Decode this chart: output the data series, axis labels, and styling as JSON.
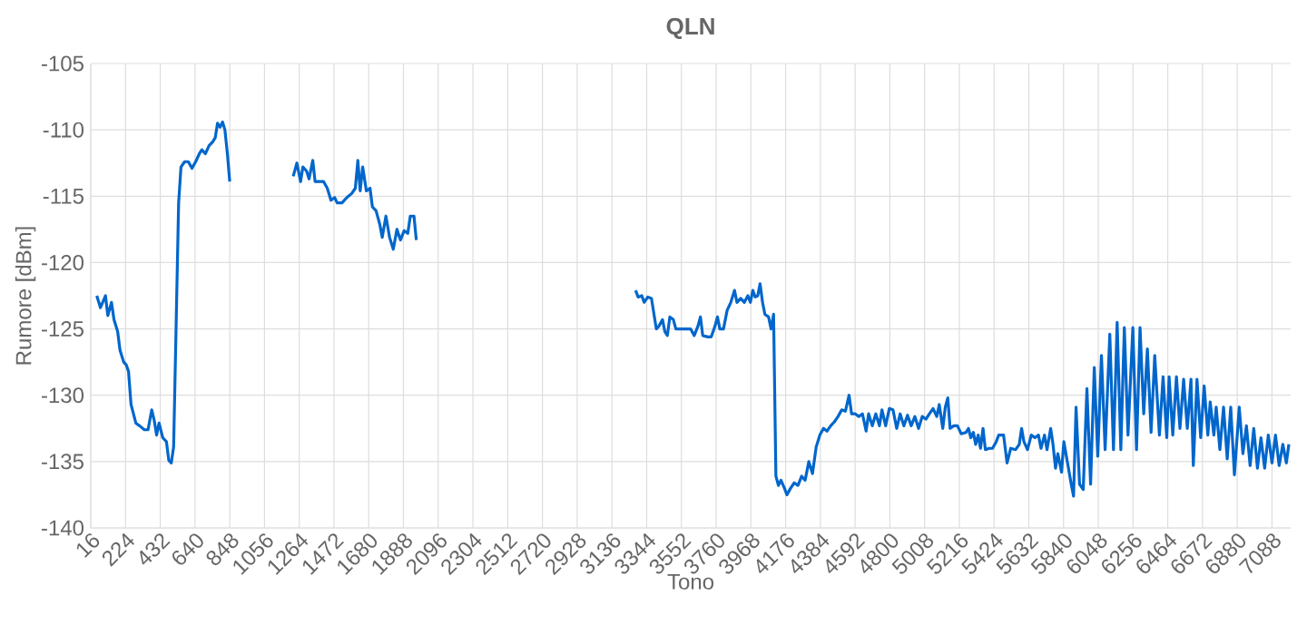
{
  "chart_data": {
    "type": "line",
    "title": "QLN",
    "xlabel": "Tono",
    "ylabel": "Rumore [dBm]",
    "xlim": [
      16,
      7200
    ],
    "ylim": [
      -140,
      -105
    ],
    "xticks": [
      16,
      224,
      432,
      640,
      848,
      1056,
      1264,
      1472,
      1680,
      1888,
      2096,
      2304,
      2512,
      2720,
      2928,
      3136,
      3344,
      3552,
      3760,
      3968,
      4176,
      4384,
      4592,
      4800,
      5008,
      5216,
      5424,
      5632,
      5840,
      6048,
      6256,
      6464,
      6672,
      6880,
      7088
    ],
    "yticks": [
      -140,
      -135,
      -130,
      -125,
      -120,
      -115,
      -110,
      -105
    ],
    "grid": true,
    "marker": "none",
    "line_style": "solid",
    "series": [
      {
        "color": "#0066cc",
        "x": [
          52,
          74,
          104,
          118,
          140,
          155,
          177,
          191,
          213,
          228,
          242,
          257,
          286,
          308,
          337,
          359,
          381,
          396,
          410,
          425,
          447,
          469,
          483,
          498,
          512,
          527,
          542,
          556,
          578,
          600,
          622,
          644,
          666,
          681,
          702,
          724,
          746,
          761,
          775,
          790,
          805,
          819,
          834,
          848,
          1000,
          1228,
          1250,
          1272,
          1286,
          1308,
          1323,
          1345,
          1359,
          1381,
          1410,
          1432,
          1454,
          1476,
          1491,
          1520,
          1549,
          1578,
          1600,
          1615,
          1629,
          1644,
          1666,
          1688,
          1702,
          1724,
          1746,
          1761,
          1783,
          1805,
          1827,
          1849,
          1870,
          1892,
          1914,
          1929,
          1951,
          1965,
          2500,
          3278,
          3293,
          3315,
          3329,
          3351,
          3373,
          3388,
          3402,
          3417,
          3439,
          3453,
          3468,
          3483,
          3504,
          3519,
          3541,
          3563,
          3585,
          3607,
          3629,
          3651,
          3666,
          3680,
          3709,
          3731,
          3753,
          3768,
          3782,
          3804,
          3826,
          3848,
          3870,
          3885,
          3907,
          3929,
          3950,
          3965,
          3980,
          3994,
          4009,
          4023,
          4038,
          4052,
          4074,
          4089,
          4104,
          4118,
          4133,
          4148,
          4169,
          4184,
          4206,
          4228,
          4250,
          4272,
          4293,
          4315,
          4337,
          4359,
          4381,
          4403,
          4424,
          4446,
          4468,
          4490,
          4512,
          4534,
          4556,
          4571,
          4593,
          4614,
          4636,
          4658,
          4673,
          4695,
          4716,
          4738,
          4753,
          4775,
          4797,
          4819,
          4841,
          4862,
          4884,
          4906,
          4928,
          4950,
          4972,
          4994,
          5016,
          5037,
          5059,
          5081,
          5096,
          5117,
          5132,
          5147,
          5161,
          5183,
          5205,
          5227,
          5256,
          5271,
          5285,
          5300,
          5314,
          5329,
          5343,
          5358,
          5372,
          5394,
          5415,
          5437,
          5452,
          5481,
          5502,
          5524,
          5553,
          5575,
          5589,
          5603,
          5624,
          5647,
          5669,
          5690,
          5705,
          5726,
          5741,
          5763,
          5777,
          5792,
          5806,
          5828,
          5842,
          5864,
          5886,
          5900,
          5915,
          5936,
          5958,
          5980,
          6002,
          6024,
          6045,
          6067,
          6089,
          6117,
          6139,
          6161,
          6183,
          6204,
          6226,
          6255,
          6277,
          6298,
          6320,
          6342,
          6364,
          6386,
          6414,
          6436,
          6458,
          6472,
          6494,
          6516,
          6537,
          6559,
          6581,
          6603,
          6617,
          6639,
          6661,
          6682,
          6704,
          6718,
          6740,
          6754,
          6776,
          6798,
          6820,
          6841,
          6863,
          6892,
          6914,
          6935,
          6957,
          6979,
          7001,
          7022,
          7044,
          7066,
          7088,
          7109,
          7131,
          7153,
          7174,
          7189
        ],
        "values": [
          -122.5,
          -123.4,
          -122.5,
          -124.0,
          -123.0,
          -124.3,
          -125.2,
          -126.6,
          -127.5,
          -127.7,
          -128.2,
          -130.7,
          -132.1,
          -132.3,
          -132.6,
          -132.6,
          -131.1,
          -131.9,
          -133.0,
          -132.1,
          -133.2,
          -133.5,
          -134.9,
          -135.1,
          -133.9,
          -124.7,
          -115.5,
          -112.8,
          -112.4,
          -112.4,
          -112.9,
          -112.4,
          -111.8,
          -111.5,
          -111.8,
          -111.2,
          -110.9,
          -110.6,
          -109.5,
          -109.8,
          -109.4,
          -110.0,
          -111.8,
          -113.9,
          null,
          -113.5,
          -112.5,
          -113.9,
          -112.8,
          -113.1,
          -113.7,
          -112.3,
          -113.9,
          -113.9,
          -113.9,
          -114.4,
          -115.3,
          -115.1,
          -115.5,
          -115.5,
          -115.1,
          -114.8,
          -114.4,
          -112.3,
          -114.6,
          -112.8,
          -114.6,
          -114.4,
          -115.8,
          -116.1,
          -117.1,
          -118.1,
          -116.5,
          -118.1,
          -119.0,
          -117.5,
          -118.3,
          -117.6,
          -117.8,
          -116.5,
          -116.5,
          -118.3,
          null,
          -122.1,
          -122.6,
          -122.5,
          -123.0,
          -122.6,
          -122.7,
          -123.9,
          -125.0,
          -124.8,
          -124.3,
          -125.2,
          -125.5,
          -124.1,
          -124.3,
          -125.0,
          -125.0,
          -125.0,
          -125.0,
          -125.0,
          -125.5,
          -124.8,
          -124.1,
          -125.5,
          -125.6,
          -125.6,
          -124.8,
          -124.1,
          -125.0,
          -125.0,
          -123.6,
          -123.0,
          -122.1,
          -123.0,
          -122.7,
          -123.0,
          -122.5,
          -123.0,
          -122.1,
          -122.6,
          -122.5,
          -121.6,
          -123.0,
          -123.9,
          -124.1,
          -125.0,
          -123.9,
          -136.1,
          -136.8,
          -136.4,
          -137.0,
          -137.5,
          -137.0,
          -136.6,
          -136.8,
          -136.1,
          -136.4,
          -135.0,
          -135.9,
          -133.9,
          -133.0,
          -132.5,
          -132.7,
          -132.3,
          -132.0,
          -131.6,
          -131.1,
          -131.2,
          -130.0,
          -131.4,
          -131.4,
          -131.6,
          -131.4,
          -132.7,
          -131.4,
          -132.3,
          -131.4,
          -132.3,
          -131.1,
          -132.3,
          -131.0,
          -131.1,
          -132.5,
          -131.4,
          -132.3,
          -131.5,
          -132.3,
          -131.6,
          -132.5,
          -131.6,
          -131.8,
          -131.4,
          -131.0,
          -131.6,
          -130.7,
          -132.5,
          -130.9,
          -130.2,
          -132.5,
          -132.3,
          -132.3,
          -132.9,
          -132.8,
          -132.5,
          -133.2,
          -132.8,
          -133.7,
          -133.0,
          -134.0,
          -132.5,
          -134.1,
          -134.0,
          -134.0,
          -133.5,
          -133.0,
          -133.0,
          -135.1,
          -134.0,
          -134.1,
          -133.7,
          -132.5,
          -133.5,
          -134.1,
          -133.0,
          -133.2,
          -133.0,
          -134.0,
          -133.0,
          -134.1,
          -132.5,
          -133.7,
          -135.5,
          -134.4,
          -135.8,
          -133.5,
          -135.1,
          -136.7,
          -137.6,
          -130.9,
          -136.7,
          -137.1,
          -129.5,
          -136.7,
          -127.9,
          -134.6,
          -127.0,
          -134.1,
          -125.4,
          -134.1,
          -124.5,
          -134.1,
          -124.9,
          -133.0,
          -124.9,
          -134.1,
          -124.9,
          -131.4,
          -126.5,
          -132.8,
          -127.0,
          -133.0,
          -128.6,
          -133.2,
          -128.6,
          -133.0,
          -128.6,
          -132.5,
          -128.8,
          -132.5,
          -128.8,
          -135.3,
          -128.8,
          -133.2,
          -129.3,
          -133.0,
          -130.5,
          -133.0,
          -130.9,
          -134.1,
          -130.9,
          -134.8,
          -130.9,
          -136.0,
          -130.9,
          -134.4,
          -132.3,
          -135.3,
          -132.5,
          -135.5,
          -133.2,
          -135.5,
          -133.0,
          -135.1,
          -133.0,
          -135.3,
          -133.7,
          -135.1,
          -133.7
        ]
      }
    ]
  }
}
